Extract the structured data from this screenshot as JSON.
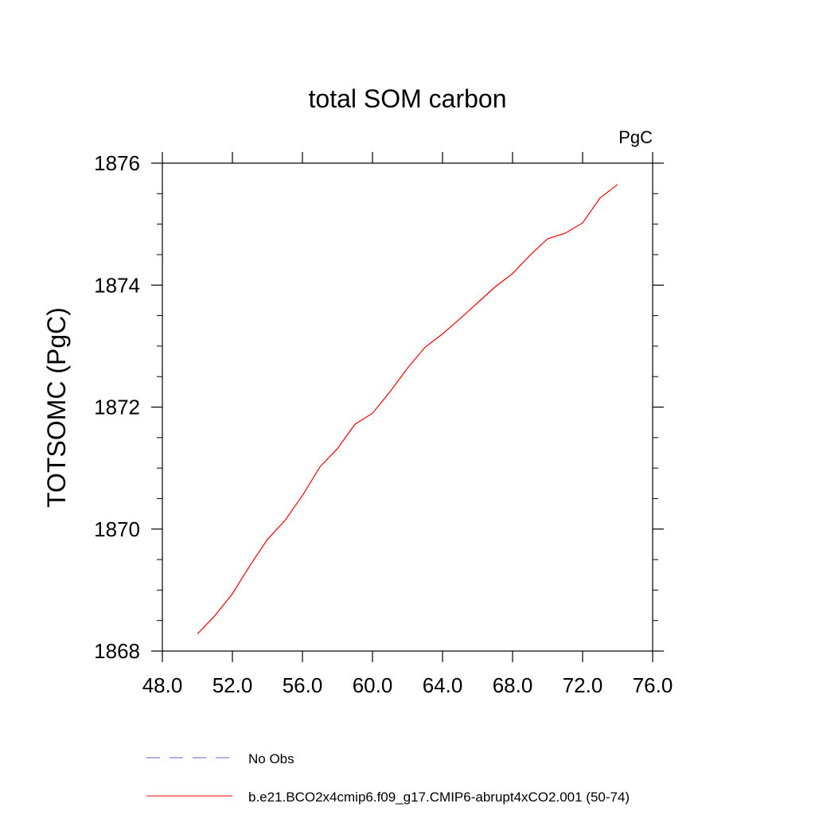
{
  "chart_data": {
    "type": "line",
    "title": "total SOM carbon",
    "units_label": "PgC",
    "xlabel": "",
    "ylabel": "TOTSOMC  (PgC)",
    "xlim": [
      48,
      76
    ],
    "ylim": [
      1868,
      1876
    ],
    "x_ticks": [
      48,
      52,
      56,
      60,
      64,
      68,
      72,
      76
    ],
    "x_tick_labels": [
      "48.0",
      "52.0",
      "56.0",
      "60.0",
      "64.0",
      "68.0",
      "72.0",
      "76.0"
    ],
    "y_ticks": [
      1868,
      1870,
      1872,
      1874,
      1876
    ],
    "y_tick_labels": [
      "1868",
      "1870",
      "1872",
      "1874",
      "1876"
    ],
    "grid": false,
    "legend_position": "bottom",
    "series": [
      {
        "name": "b.e21.BCO2x4cmip6.f09_g17.CMIP6-abrupt4xCO2.001 (50-74)",
        "color": "#ff0000",
        "style": "solid",
        "x": [
          50,
          51,
          52,
          53,
          54,
          55,
          56,
          57,
          58,
          59,
          60,
          61,
          62,
          63,
          64,
          65,
          66,
          67,
          68,
          69,
          70,
          71,
          72,
          73,
          74
        ],
        "y": [
          1868.28,
          1868.58,
          1868.94,
          1869.4,
          1869.83,
          1870.14,
          1870.55,
          1871.02,
          1871.32,
          1871.72,
          1871.9,
          1872.25,
          1872.64,
          1872.98,
          1873.2,
          1873.45,
          1873.71,
          1873.97,
          1874.19,
          1874.49,
          1874.76,
          1874.85,
          1875.02,
          1875.43,
          1875.65
        ]
      }
    ],
    "legend": [
      {
        "label": "No Obs",
        "color": "#6a5acd",
        "style": "dashed"
      },
      {
        "label": "b.e21.BCO2x4cmip6.f09_g17.CMIP6-abrupt4xCO2.001 (50-74)",
        "color": "#ff0000",
        "style": "solid"
      }
    ]
  }
}
